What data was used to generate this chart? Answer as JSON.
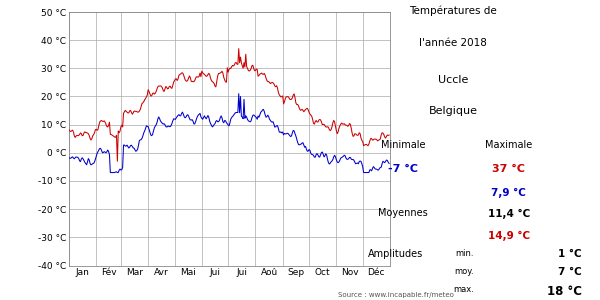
{
  "title_line1": "Températures de",
  "title_line2": "l'année 2018",
  "subtitle_line1": "Uccle",
  "subtitle_line2": "Belgique",
  "source": "Source : www.incapable.fr/meteo",
  "ylim": [
    -40,
    50
  ],
  "yticks": [
    -40,
    -30,
    -20,
    -10,
    0,
    10,
    20,
    30,
    40,
    50
  ],
  "ytick_labels": [
    "-40 °C",
    "-30 °C",
    "-20 °C",
    "-10 °C",
    "0 °C",
    "10 °C",
    "20 °C",
    "30 °C",
    "40 °C",
    "50 °C"
  ],
  "months": [
    "Jan",
    "Fév",
    "Mar",
    "Avr",
    "Mai",
    "Jui",
    "Jui",
    "Aoû",
    "Sep",
    "Oct",
    "Nov",
    "Déc"
  ],
  "min_label": "Minimale",
  "max_label": "Maximale",
  "min_val_blue": "-7 °C",
  "max_val_red": "37 °C",
  "max_val_blue": "7,9 °C",
  "moyennes_label": "Moyennes",
  "moy_black": "11,4 °C",
  "moy_red": "14,9 °C",
  "amplitudes_label": "Amplitudes",
  "amp_min": "1 °C",
  "amp_moy": "7 °C",
  "amp_max": "18 °C",
  "amp_min_label": "min.",
  "amp_moy_label": "moy.",
  "amp_max_label": "max.",
  "line_color_min": "#0000cc",
  "line_color_max": "#cc0000",
  "bg_color": "#ffffff",
  "grid_color": "#aaaaaa"
}
